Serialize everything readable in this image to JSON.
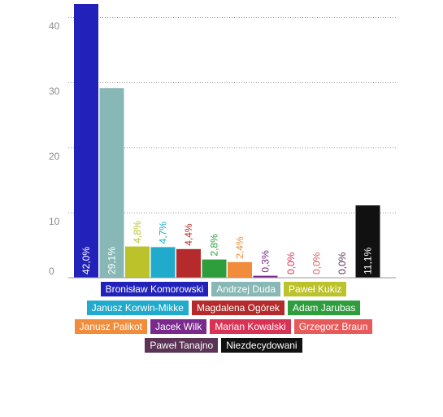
{
  "chart_data": {
    "type": "bar",
    "categories": [
      "Bronisław Komorowski",
      "Andrzej Duda",
      "Paweł Kukiz",
      "Janusz Korwin-Mikke",
      "Magdalena Ogórek",
      "Adam Jarubas",
      "Janusz Palikot",
      "Jacek Wilk",
      "Marian Kowalski",
      "Grzegorz Braun",
      "Paweł Tanajno",
      "Niezdecydowani"
    ],
    "values": [
      42.0,
      29.1,
      4.8,
      4.7,
      4.4,
      2.8,
      2.4,
      0.3,
      0.0,
      0.0,
      0.0,
      11.1
    ],
    "value_labels": [
      "42,0%",
      "29,1%",
      "4,8%",
      "4,7%",
      "4,4%",
      "2,8%",
      "2,4%",
      "0,3%",
      "0,0%",
      "0,0%",
      "0,0%",
      "11,1%"
    ],
    "colors": [
      "#2222bb",
      "#88b8b5",
      "#bcc22a",
      "#20aacc",
      "#b52a2a",
      "#2e9e3d",
      "#f08c3a",
      "#7a2a8c",
      "#d83255",
      "#e85a5a",
      "#5a3355",
      "#111111"
    ],
    "label_inside": [
      true,
      true,
      false,
      false,
      false,
      false,
      false,
      false,
      false,
      false,
      false,
      true
    ],
    "yticks": [
      0,
      10,
      20,
      30,
      40
    ],
    "ytick_labels": [
      "0",
      "10",
      "20",
      "30",
      "40"
    ],
    "ylim": [
      0,
      40
    ],
    "grid": true,
    "title": "",
    "xlabel": "",
    "ylabel": "",
    "legend_position": "bottom"
  }
}
